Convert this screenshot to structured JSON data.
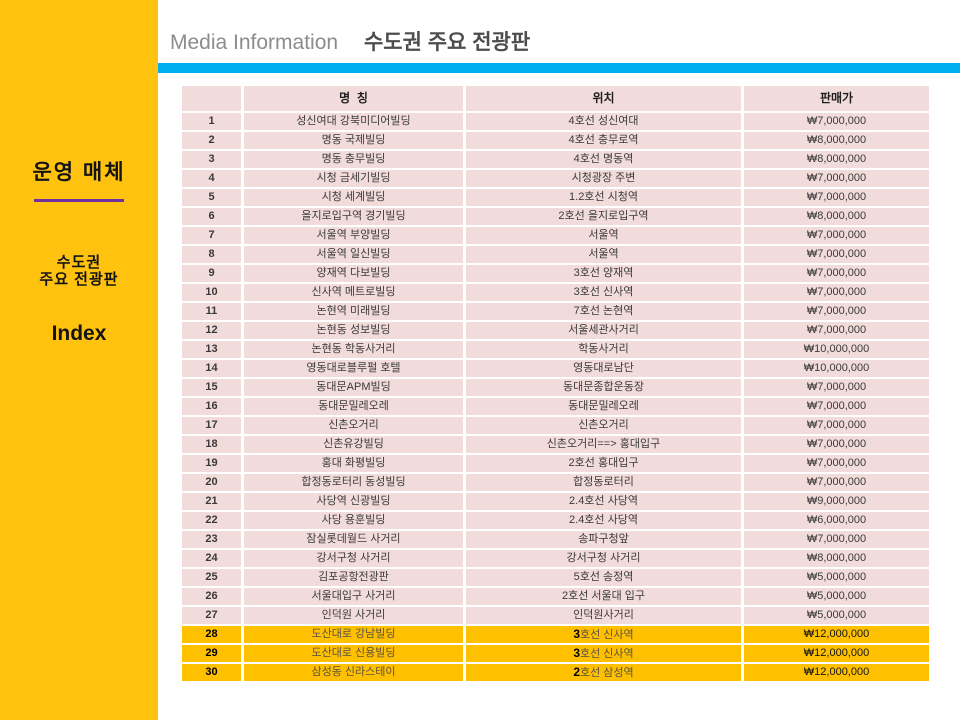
{
  "header": {
    "title_en": "Media Information",
    "title_ko": "수도권 주요 전광판"
  },
  "sidebar": {
    "title": "운영 매체",
    "subtitle_line1": "수도권",
    "subtitle_line2": "주요 전광판",
    "index_label": "Index"
  },
  "colors": {
    "sidebar_bg": "#FFC20E",
    "highlight_bg": "#FFC000",
    "row_bg": "#F2DCDB",
    "accent_bar": "#00AEEF",
    "divider": "#7030A0"
  },
  "table": {
    "columns": [
      "",
      "명  칭",
      "위치",
      "판매가"
    ],
    "rows": [
      {
        "num": "1",
        "name": "성신여대 강북미디어빌딩",
        "loc": "4호선 성신여대",
        "price": "₩7,000,000"
      },
      {
        "num": "2",
        "name": "명동 국제빌딩",
        "loc": "4호선 충무로역",
        "price": "₩8,000,000"
      },
      {
        "num": "3",
        "name": "명동 충무빌딩",
        "loc": "4호선 명동역",
        "price": "₩8,000,000"
      },
      {
        "num": "4",
        "name": "시청 금세기빌딩",
        "loc": "시청광장 주변",
        "price": "₩7,000,000"
      },
      {
        "num": "5",
        "name": "시청 세계빌딩",
        "loc": "1.2호선 시청역",
        "price": "₩7,000,000"
      },
      {
        "num": "6",
        "name": "을지로입구역 경기빌딩",
        "loc": "2호선 을지로입구역",
        "price": "₩8,000,000"
      },
      {
        "num": "7",
        "name": "서울역 부양빌딩",
        "loc": "서울역",
        "price": "₩7,000,000"
      },
      {
        "num": "8",
        "name": "서울역 일신빌딩",
        "loc": "서울역",
        "price": "₩7,000,000"
      },
      {
        "num": "9",
        "name": "양재역 다보빌딩",
        "loc": "3호선 양재역",
        "price": "₩7,000,000"
      },
      {
        "num": "10",
        "name": "신사역 메트로빌딩",
        "loc": "3호선 신사역",
        "price": "₩7,000,000"
      },
      {
        "num": "11",
        "name": "논현역 미래빌딩",
        "loc": "7호선 논현역",
        "price": "₩7,000,000"
      },
      {
        "num": "12",
        "name": "논현동 성보빌딩",
        "loc": "서울세관사거리",
        "price": "₩7,000,000"
      },
      {
        "num": "13",
        "name": "논현동 학동사거리",
        "loc": "학동사거리",
        "price": "₩10,000,000"
      },
      {
        "num": "14",
        "name": "영동대로블루펄 호텔",
        "loc": "영동대로남단",
        "price": "₩10,000,000"
      },
      {
        "num": "15",
        "name": "동대문APM빌딩",
        "loc": "동대문종합운동장",
        "price": "₩7,000,000"
      },
      {
        "num": "16",
        "name": "동대문밀레오레",
        "loc": "동대문밀레오레",
        "price": "₩7,000,000"
      },
      {
        "num": "17",
        "name": "신촌오거리",
        "loc": "신촌오거리",
        "price": "₩7,000,000"
      },
      {
        "num": "18",
        "name": "신촌유강빌딩",
        "loc": "신촌오거리==> 홍대입구",
        "price": "₩7,000,000"
      },
      {
        "num": "19",
        "name": "홍대 화평빌딩",
        "loc": "2호선 홍대입구",
        "price": "₩7,000,000"
      },
      {
        "num": "20",
        "name": "합정동로터리 동성빌딩",
        "loc": "합정동로터리",
        "price": "₩7,000,000"
      },
      {
        "num": "21",
        "name": "사당역 신광빌딩",
        "loc": "2.4호선 사당역",
        "price": "₩9,000,000"
      },
      {
        "num": "22",
        "name": "사당 용훈빌딩",
        "loc": "2.4호선 사당역",
        "price": "₩6,000,000"
      },
      {
        "num": "23",
        "name": "잠실롯데월드 사거리",
        "loc": "송파구청앞",
        "price": "₩7,000,000"
      },
      {
        "num": "24",
        "name": "강서구청 사거리",
        "loc": "강서구청 사거리",
        "price": "₩8,000,000"
      },
      {
        "num": "25",
        "name": "김포공항전광판",
        "loc": "5호선 송정역",
        "price": "₩5,000,000"
      },
      {
        "num": "26",
        "name": "서울대입구 사거리",
        "loc": "2호선 서울대 입구",
        "price": "₩5,000,000"
      },
      {
        "num": "27",
        "name": "인덕원 사거리",
        "loc": "인덕원사거리",
        "price": "₩5,000,000"
      },
      {
        "num": "28",
        "name": "도산대로 강남빌딩",
        "loc_bold": "3",
        "loc": "호선 신사역",
        "price": "₩12,000,000",
        "highlight": true
      },
      {
        "num": "29",
        "name": "도산대로 신용빌딩",
        "loc_bold": "3",
        "loc": "호선 신사역",
        "price": "₩12,000,000",
        "highlight": true
      },
      {
        "num": "30",
        "name": "삼성동 신라스테이",
        "loc_bold": "2",
        "loc": "호선 삼성역",
        "price": "₩12,000,000",
        "highlight": true
      }
    ]
  }
}
